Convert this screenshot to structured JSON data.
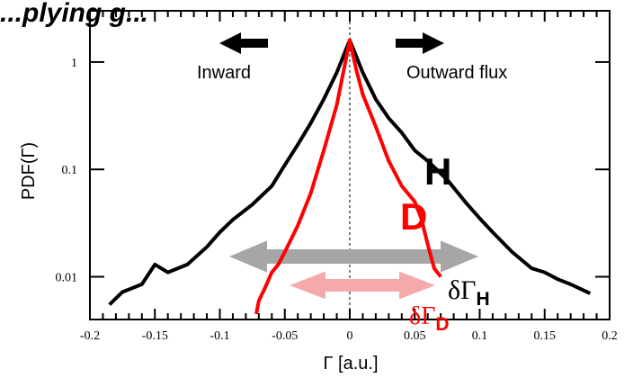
{
  "chart_data": {
    "type": "line",
    "title_fragment": "...plying g...",
    "xlabel": "Γ [a.u.]",
    "ylabel": "PDF(Γ)",
    "xlim": [
      -0.2,
      0.2
    ],
    "ylim": [
      0.004,
      3.0
    ],
    "yscale": "log",
    "xticks": [
      -0.2,
      -0.15,
      -0.1,
      -0.05,
      0,
      0.05,
      0.1,
      0.15,
      0.2
    ],
    "xtick_labels": [
      "-0.2",
      "-0.15",
      "-0.1",
      "-0.05",
      "0",
      "0.05",
      "0.1",
      "0.15",
      "0.2"
    ],
    "yticks": [
      0.01,
      0.1,
      1
    ],
    "ytick_labels": [
      "0.01",
      "0.1",
      "1"
    ],
    "grid": false,
    "series": [
      {
        "name": "H",
        "color": "#000000",
        "x": [
          -0.185,
          -0.175,
          -0.16,
          -0.15,
          -0.14,
          -0.125,
          -0.11,
          -0.1,
          -0.09,
          -0.075,
          -0.06,
          -0.05,
          -0.04,
          -0.03,
          -0.02,
          -0.01,
          0,
          0.01,
          0.02,
          0.03,
          0.04,
          0.05,
          0.06,
          0.075,
          0.09,
          0.1,
          0.11,
          0.125,
          0.14,
          0.15,
          0.16,
          0.17,
          0.185
        ],
        "y": [
          0.0055,
          0.0072,
          0.0085,
          0.013,
          0.011,
          0.013,
          0.019,
          0.026,
          0.034,
          0.047,
          0.07,
          0.11,
          0.17,
          0.27,
          0.45,
          0.8,
          1.6,
          0.8,
          0.45,
          0.3,
          0.22,
          0.15,
          0.12,
          0.08,
          0.048,
          0.035,
          0.026,
          0.017,
          0.012,
          0.011,
          0.0095,
          0.0085,
          0.007
        ]
      },
      {
        "name": "D",
        "color": "#ff0000",
        "x": [
          -0.072,
          -0.07,
          -0.065,
          -0.06,
          -0.055,
          -0.05,
          -0.04,
          -0.03,
          -0.02,
          -0.01,
          -0.005,
          0,
          0.005,
          0.01,
          0.02,
          0.03,
          0.04,
          0.05,
          0.055,
          0.06,
          0.065,
          0.07
        ],
        "y": [
          0.0045,
          0.006,
          0.008,
          0.011,
          0.013,
          0.017,
          0.03,
          0.06,
          0.15,
          0.4,
          0.8,
          1.6,
          0.85,
          0.5,
          0.25,
          0.12,
          0.07,
          0.05,
          0.035,
          0.02,
          0.012,
          0.01
        ]
      }
    ]
  },
  "annotations": {
    "inward": "Inward",
    "outward": "Outward flux",
    "h_label": "H",
    "d_label": "D",
    "delta_gamma": "δΓ",
    "h_sub": "H",
    "d_sub": "D"
  },
  "colors": {
    "h_series": "#000000",
    "d_series": "#ff0000",
    "h_width_arrow": "#a6a6a6",
    "d_width_arrow": "#f4aaaa",
    "title_fragment": "#1f3a93"
  }
}
